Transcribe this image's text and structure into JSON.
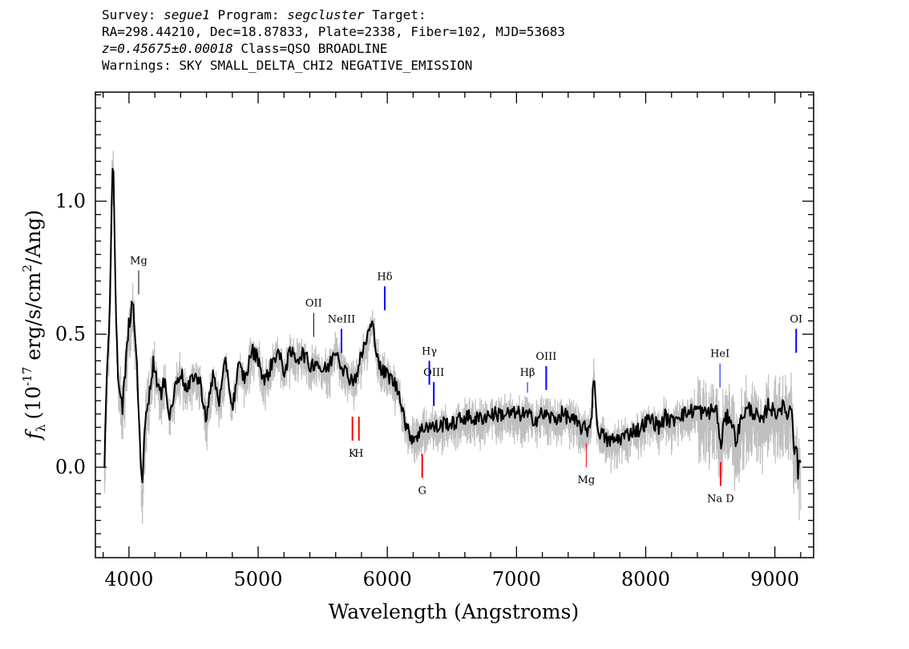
{
  "header": {
    "survey_label": "Survey: ",
    "survey": "segue1",
    "program_label": " Program: ",
    "program": "segcluster",
    "target_label": " Target:",
    "line2": "RA=298.44210, Dec=18.87833, Plate=2338, Fiber=102, MJD=53683",
    "redshift": "z=0.45675±0.00018",
    "class_text": " Class=QSO BROADLINE",
    "warnings": "Warnings: SKY SMALL_DELTA_CHI2 NEGATIVE_EMISSION"
  },
  "chart_data": {
    "type": "line",
    "xlabel": "Wavelength (Angstroms)",
    "ylabel_symbol": "f",
    "ylabel_sub": "λ",
    "ylabel_units_pre": "(10",
    "ylabel_exp1": "-17",
    "ylabel_units_mid": " erg/s/cm",
    "ylabel_exp2": "2",
    "ylabel_units_post": "/Ang)",
    "xlim": [
      3740,
      9300
    ],
    "ylim": [
      -0.34,
      1.41
    ],
    "x_ticks": [
      4000,
      5000,
      6000,
      7000,
      8000,
      9000
    ],
    "x_tick_labels": [
      "4000",
      "5000",
      "6000",
      "7000",
      "8000",
      "9000"
    ],
    "y_ticks": [
      0.0,
      0.5,
      1.0
    ],
    "y_tick_labels": [
      "0.0",
      "0.5",
      "1.0"
    ],
    "colors": {
      "flux": "#000000",
      "error": "#c0c0c0",
      "emission": "#0000ff",
      "absorption": "#ff0000",
      "marker": "#000000"
    },
    "series": [
      {
        "role": "smoothed flux",
        "x": [
          3810,
          3830,
          3850,
          3870,
          3880,
          3900,
          3920,
          3950,
          3980,
          4000,
          4030,
          4060,
          4090,
          4100,
          4130,
          4160,
          4190,
          4220,
          4250,
          4280,
          4310,
          4340,
          4370,
          4400,
          4450,
          4500,
          4550,
          4600,
          4650,
          4700,
          4750,
          4800,
          4850,
          4900,
          4950,
          5000,
          5050,
          5100,
          5150,
          5200,
          5250,
          5300,
          5350,
          5400,
          5450,
          5500,
          5550,
          5600,
          5650,
          5700,
          5750,
          5800,
          5850,
          5880,
          5900,
          5950,
          6000,
          6050,
          6100,
          6150,
          6200,
          6250,
          6300,
          6350,
          6400,
          6450,
          6500,
          6600,
          6700,
          6800,
          6900,
          7000,
          7050,
          7100,
          7150,
          7200,
          7250,
          7300,
          7350,
          7400,
          7450,
          7500,
          7550,
          7580,
          7600,
          7620,
          7650,
          7700,
          7750,
          7800,
          7850,
          7900,
          7950,
          8000,
          8050,
          8100,
          8150,
          8200,
          8250,
          8300,
          8350,
          8400,
          8450,
          8500,
          8550,
          8580,
          8600,
          8650,
          8700,
          8750,
          8800,
          8850,
          8900,
          8950,
          9000,
          9050,
          9100,
          9130,
          9150,
          9170,
          9180,
          9190,
          9200
        ],
        "y": [
          0.02,
          0.35,
          0.55,
          1.08,
          1.14,
          0.55,
          0.3,
          0.22,
          0.42,
          0.54,
          0.62,
          0.4,
          0.05,
          -0.1,
          0.22,
          0.28,
          0.4,
          0.32,
          0.26,
          0.35,
          0.18,
          0.25,
          0.33,
          0.36,
          0.28,
          0.35,
          0.32,
          0.18,
          0.35,
          0.25,
          0.4,
          0.22,
          0.38,
          0.33,
          0.44,
          0.41,
          0.32,
          0.38,
          0.44,
          0.36,
          0.43,
          0.41,
          0.43,
          0.38,
          0.4,
          0.36,
          0.38,
          0.45,
          0.38,
          0.34,
          0.33,
          0.42,
          0.5,
          0.54,
          0.49,
          0.36,
          0.35,
          0.32,
          0.27,
          0.14,
          0.11,
          0.13,
          0.16,
          0.15,
          0.15,
          0.17,
          0.16,
          0.19,
          0.18,
          0.2,
          0.2,
          0.2,
          0.2,
          0.19,
          0.18,
          0.2,
          0.19,
          0.18,
          0.2,
          0.19,
          0.17,
          0.15,
          0.14,
          0.18,
          0.38,
          0.16,
          0.13,
          0.1,
          0.1,
          0.11,
          0.12,
          0.14,
          0.14,
          0.17,
          0.18,
          0.15,
          0.19,
          0.17,
          0.2,
          0.2,
          0.21,
          0.22,
          0.2,
          0.21,
          0.22,
          0.06,
          0.16,
          0.2,
          0.1,
          0.2,
          0.22,
          0.2,
          0.16,
          0.24,
          0.2,
          0.23,
          0.2,
          0.23,
          0.06,
          0.12,
          -0.06,
          0.04,
          0.02
        ]
      }
    ],
    "line_markers": [
      {
        "label": "Mg",
        "x": 4075,
        "kind": "emission-weak",
        "y_top": 0.74,
        "y_bot": 0.65
      },
      {
        "label": "OII",
        "x": 5430,
        "kind": "emission-weak",
        "y_top": 0.58,
        "y_bot": 0.49
      },
      {
        "label": "NeIII",
        "x": 5645,
        "kind": "emission",
        "y_top": 0.52,
        "y_bot": 0.43
      },
      {
        "label": "Hδ",
        "x": 5980,
        "kind": "emission",
        "y_top": 0.68,
        "y_bot": 0.59
      },
      {
        "label": "Hγ",
        "x": 6325,
        "kind": "emission",
        "y_top": 0.4,
        "y_bot": 0.31
      },
      {
        "label": "OIII",
        "x": 6360,
        "kind": "emission",
        "y_top": 0.32,
        "y_bot": 0.23
      },
      {
        "label": "Hβ",
        "x": 7085,
        "kind": "emission-weak",
        "y_top": 0.32,
        "y_bot": 0.28
      },
      {
        "label": "OIII",
        "x": 7230,
        "kind": "emission",
        "y_top": 0.38,
        "y_bot": 0.29
      },
      {
        "label": "HeI",
        "x": 8575,
        "kind": "emission-weak",
        "y_top": 0.39,
        "y_bot": 0.3
      },
      {
        "label": "OI",
        "x": 9165,
        "kind": "emission",
        "y_top": 0.52,
        "y_bot": 0.43
      },
      {
        "label": "K",
        "x": 5730,
        "kind": "absorption",
        "y_top": 0.19,
        "y_bot": 0.1
      },
      {
        "label": "H",
        "x": 5780,
        "kind": "absorption",
        "y_top": 0.19,
        "y_bot": 0.1
      },
      {
        "label": "G",
        "x": 6270,
        "kind": "absorption",
        "y_top": 0.05,
        "y_bot": -0.04
      },
      {
        "label": "Mg",
        "x": 7540,
        "kind": "absorption-weak",
        "y_top": 0.09,
        "y_bot": 0.0
      },
      {
        "label": "Na D",
        "x": 8580,
        "kind": "absorption",
        "y_top": 0.02,
        "y_bot": -0.07
      }
    ]
  }
}
